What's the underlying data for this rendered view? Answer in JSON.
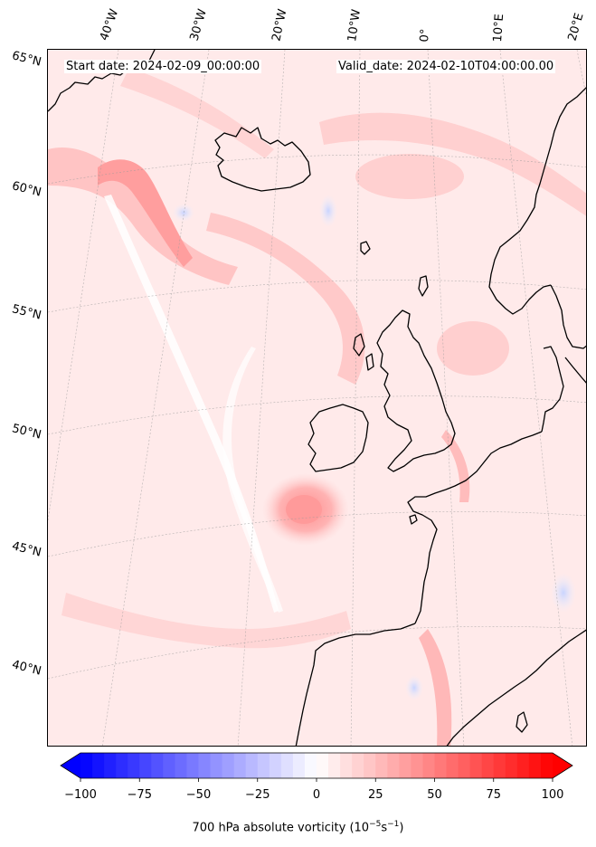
{
  "header": {
    "start_date": "Start date: 2024-02-09_00:00:00",
    "valid_date": "Valid_date: 2024-02-10T04:00:00.00"
  },
  "lon_labels": [
    "40°W",
    "30°W",
    "20°W",
    "10°W",
    "0°",
    "10°E",
    "20°E"
  ],
  "lat_labels": [
    "65°N",
    "60°N",
    "55°N",
    "50°N",
    "45°N",
    "40°N"
  ],
  "colorbar": {
    "title_prefix": "700 hPa absolute vorticity (10",
    "title_exp1": "−5",
    "title_mid": "s",
    "title_exp2": "−1",
    "title_suffix": ")",
    "ticks": [
      "−100",
      "−75",
      "−50",
      "−25",
      "0",
      "25",
      "50",
      "75",
      "100"
    ],
    "min": -100,
    "max": 100,
    "levels": 40,
    "low_color": "#0000ff",
    "mid_color": "#ffffff",
    "high_color": "#ff0000"
  },
  "colors": {
    "background_field": "#ffeaea",
    "coastline": "#000000",
    "gridline": "#9a9a9a"
  }
}
